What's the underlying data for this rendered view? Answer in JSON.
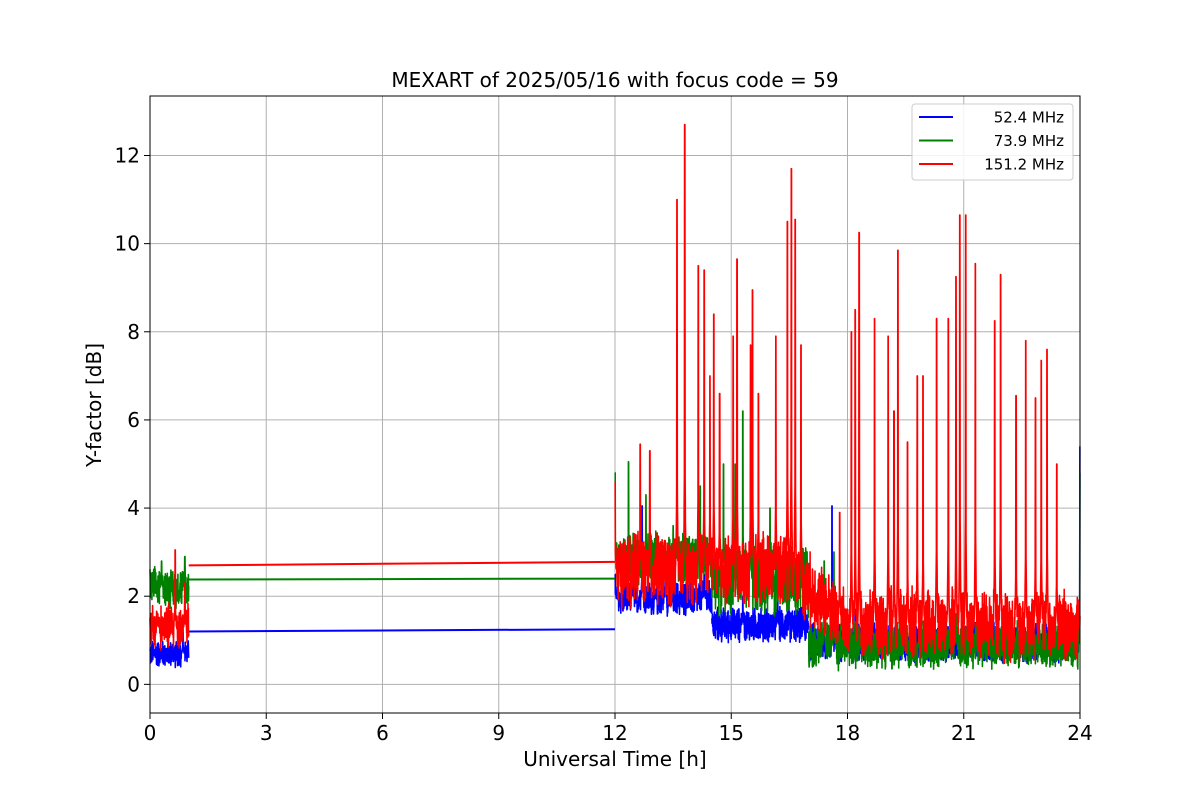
{
  "chart_data": {
    "type": "line",
    "title": "MEXART of 2025/05/16 with focus code = 59",
    "xlabel": "Universal Time [h]",
    "ylabel": "Y-factor [dB]",
    "xlim": [
      0,
      24
    ],
    "ylim": [
      -0.65,
      13.35
    ],
    "xticks": [
      0,
      3,
      6,
      9,
      12,
      15,
      18,
      21,
      24
    ],
    "yticks": [
      0,
      2,
      4,
      6,
      8,
      10,
      12
    ],
    "grid": true,
    "legend_position": "top-right",
    "series": [
      {
        "name": "52.4 MHz",
        "color": "#0000ff",
        "segments": [
          {
            "x0": 0.0,
            "x1": 1.0,
            "base": 0.7,
            "noise": 0.35,
            "spikes": [
              [
                0.85,
                1.4
              ]
            ],
            "bridge_to": 1.2
          },
          {
            "bridge_line": [
              [
                1.0,
                1.2
              ],
              [
                12.0,
                1.25
              ]
            ]
          },
          {
            "x0": 12.0,
            "x1": 14.5,
            "base": 1.95,
            "noise": 0.45,
            "spikes": [
              [
                12.0,
                2.5
              ],
              [
                12.45,
                2.6
              ],
              [
                12.7,
                4.05
              ],
              [
                13.3,
                2.7
              ],
              [
                14.3,
                2.5
              ]
            ]
          },
          {
            "x0": 14.5,
            "x1": 17.0,
            "base": 1.35,
            "noise": 0.45,
            "spikes": [
              [
                15.3,
                2.0
              ],
              [
                16.2,
                1.9
              ]
            ]
          },
          {
            "x0": 17.0,
            "x1": 24.0,
            "base": 0.95,
            "noise": 0.5,
            "spikes": [
              [
                17.6,
                4.05
              ],
              [
                18.2,
                1.7
              ],
              [
                19.0,
                1.6
              ],
              [
                21.3,
                1.4
              ],
              [
                23.6,
                1.5
              ],
              [
                24.0,
                5.4
              ]
            ]
          }
        ]
      },
      {
        "name": "73.9 MHz",
        "color": "#008000",
        "segments": [
          {
            "x0": 0.0,
            "x1": 1.0,
            "base": 2.2,
            "noise": 0.5,
            "spikes": [
              [
                0.3,
                2.8
              ],
              [
                0.9,
                2.9
              ]
            ],
            "bridge_to": 2.38
          },
          {
            "bridge_line": [
              [
                1.0,
                2.38
              ],
              [
                12.0,
                2.4
              ]
            ]
          },
          {
            "x0": 12.0,
            "x1": 14.5,
            "base": 2.85,
            "noise": 0.7,
            "spikes": [
              [
                12.0,
                4.8
              ],
              [
                12.35,
                5.05
              ],
              [
                12.8,
                4.3
              ],
              [
                13.5,
                3.6
              ],
              [
                14.2,
                4.5
              ]
            ]
          },
          {
            "x0": 14.5,
            "x1": 17.0,
            "base": 2.4,
            "noise": 0.9,
            "spikes": [
              [
                14.8,
                5.0
              ],
              [
                15.1,
                5.0
              ],
              [
                15.3,
                6.2
              ],
              [
                15.5,
                5.5
              ],
              [
                16.0,
                4.0
              ]
            ]
          },
          {
            "x0": 17.0,
            "x1": 24.0,
            "base": 0.9,
            "noise": 0.6,
            "spikes": [
              [
                17.4,
                2.8
              ],
              [
                17.65,
                3.0
              ],
              [
                19.5,
                1.8
              ],
              [
                20.8,
                1.6
              ],
              [
                24.0,
                4.8
              ]
            ]
          }
        ]
      },
      {
        "name": "151.2 MHz",
        "color": "#ff0000",
        "segments": [
          {
            "x0": 0.0,
            "x1": 1.0,
            "base": 1.3,
            "noise": 0.6,
            "spikes": [
              [
                0.2,
                1.6
              ],
              [
                0.65,
                3.05
              ],
              [
                0.9,
                2.3
              ]
            ],
            "bridge_to": 2.7
          },
          {
            "bridge_line": [
              [
                1.0,
                2.7
              ],
              [
                12.0,
                2.78
              ]
            ]
          },
          {
            "x0": 12.0,
            "x1": 24.0,
            "base": 2.6,
            "decay_to": 1.35,
            "decay_start": 16.5,
            "noise": 0.9,
            "spikes": [
              [
                12.0,
                4.6
              ],
              [
                12.65,
                5.45
              ],
              [
                12.9,
                5.3
              ],
              [
                13.6,
                11.0
              ],
              [
                13.8,
                12.7
              ],
              [
                14.15,
                9.5
              ],
              [
                14.3,
                9.4
              ],
              [
                14.55,
                8.4
              ],
              [
                14.45,
                7.0
              ],
              [
                14.7,
                6.6
              ],
              [
                15.05,
                7.9
              ],
              [
                15.15,
                9.65
              ],
              [
                15.5,
                7.7
              ],
              [
                15.55,
                8.95
              ],
              [
                15.7,
                6.6
              ],
              [
                16.15,
                7.9
              ],
              [
                16.45,
                10.5
              ],
              [
                16.55,
                11.7
              ],
              [
                16.65,
                10.55
              ],
              [
                16.8,
                7.7
              ],
              [
                17.8,
                3.9
              ],
              [
                18.1,
                8.0
              ],
              [
                18.2,
                8.5
              ],
              [
                18.3,
                10.25
              ],
              [
                18.7,
                8.3
              ],
              [
                19.05,
                7.9
              ],
              [
                19.2,
                6.2
              ],
              [
                19.3,
                9.85
              ],
              [
                19.55,
                5.5
              ],
              [
                19.8,
                7.0
              ],
              [
                19.95,
                7.0
              ],
              [
                20.3,
                8.3
              ],
              [
                20.6,
                8.3
              ],
              [
                20.8,
                9.25
              ],
              [
                20.9,
                10.65
              ],
              [
                21.05,
                10.65
              ],
              [
                21.3,
                9.55
              ],
              [
                21.8,
                8.25
              ],
              [
                21.95,
                9.3
              ],
              [
                22.35,
                6.55
              ],
              [
                22.6,
                7.8
              ],
              [
                22.85,
                6.5
              ],
              [
                23.0,
                7.35
              ],
              [
                23.15,
                7.6
              ],
              [
                23.4,
                5.0
              ],
              [
                24.0,
                1.0
              ]
            ]
          }
        ]
      }
    ]
  }
}
